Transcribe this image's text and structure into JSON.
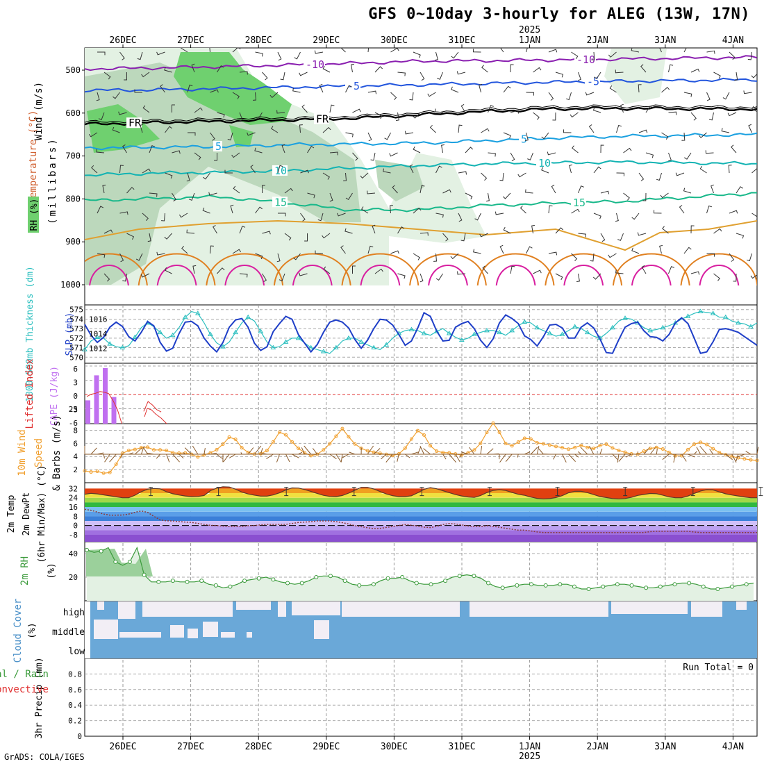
{
  "header": {
    "title": "GFS 0~10day 3-hourly for ALEG (13W, 17N)",
    "year_label": "2025",
    "credit": "GrADS: COLA/IGES"
  },
  "colors": {
    "rh_light": "#e3f1e3",
    "rh_mid": "#bcd8bc",
    "rh_dark": "#6fd06f",
    "temp_m10": "#8a1fb0",
    "temp_m5": "#2255dd",
    "temp_fr": "#000000",
    "temp_5": "#1aa0e0",
    "temp_10": "#13b3b3",
    "temp_15": "#18b88a",
    "temp_20": "#e0a030",
    "temp_25": "#e08020",
    "temp_30": "#d81fa0",
    "slp": "#1f3fc8",
    "thickness": "#2bbfbf",
    "cape": "#c070f0",
    "lifted": "#e03030",
    "wind10m": "#f0a030",
    "barb10m": "#8a5a2a",
    "rh2m": "#3a9a3a",
    "rh2m_fill": "#e3f1e3",
    "cloud": "#6aa8d8",
    "cloud_gap": "#f2eef5"
  },
  "chart_data": {
    "type": "meteogram",
    "time_axis": {
      "top_labels": [
        "26DEC",
        "27DEC",
        "28DEC",
        "29DEC",
        "30DEC",
        "31DEC",
        "1JAN",
        "2JAN",
        "3JAN",
        "4JAN"
      ],
      "bottom_labels": [
        "26DEC",
        "27DEC",
        "28DEC",
        "29DEC",
        "30DEC",
        "31DEC",
        "1JAN",
        "2JAN",
        "3JAN",
        "4JAN"
      ],
      "year_marker": "2025",
      "start_day_offset": -0.56,
      "end_day_offset": 9.3
    },
    "panels": [
      {
        "name": "upper-air",
        "ylabels": [
          "Wind (m/s)",
          "Temperature (°C)",
          "RH (%)",
          "(millibars)"
        ],
        "y_ticks": [
          "500",
          "600",
          "700",
          "800",
          "900",
          "1000"
        ],
        "ylim": [
          1000,
          450
        ],
        "contours": [
          {
            "label": "-10",
            "level_mb": [
              497,
              495,
              492,
              488,
              484,
              479,
              478,
              476,
              474,
              472,
              470
            ]
          },
          {
            "label": "-5",
            "level_mb": [
              547,
              546,
              543,
              540,
              537,
              534,
              531,
              528,
              526,
              524,
              522
            ]
          },
          {
            "label": "FR",
            "level_mb": [
              626,
              622,
              619,
              616,
              612,
              604,
              596,
              590,
              589,
              590,
              591
            ]
          },
          {
            "label": "5",
            "level_mb": [
              681,
              680,
              678,
              674,
              672,
              670,
              664,
              658,
              654,
              652,
              650
            ]
          },
          {
            "label": "10",
            "level_mb": [
              745,
              740,
              738,
              734,
              728,
              722,
              718,
              716,
              714,
              716,
              718
            ]
          },
          {
            "label": "15",
            "level_mb": [
              804,
              799,
              795,
              810,
              826,
              825,
              815,
              810,
              806,
              796,
              786
            ]
          }
        ]
      },
      {
        "name": "slp-thickness",
        "ylabels": [
          "1000-500mb Thickness (dm)",
          "SLP (mb)"
        ],
        "thickness_ticks": [
          "575",
          "574",
          "573",
          "572",
          "571",
          "570"
        ],
        "slp_ticks": [
          "1016",
          "1014",
          "1012"
        ],
        "thickness_ylim": [
          569.8,
          575.2
        ],
        "slp_ylim": [
          1010.5,
          1017.6
        ],
        "slp_mb": [
          1015.3,
          1013.8,
          1012.8,
          1013.5,
          1014.9,
          1015.6,
          1015.0,
          1013.6,
          1013.0,
          1014.2,
          1015.7,
          1015.1,
          1012.8,
          1011.6,
          1012.0,
          1014.0,
          1015.6,
          1015.7,
          1015.1,
          1013.4,
          1012.3,
          1011.5,
          1012.8,
          1014.9,
          1015.9,
          1016.1,
          1014.9,
          1012.7,
          1011.7,
          1012.2,
          1014.3,
          1015.4,
          1016.4,
          1016.0,
          1013.9,
          1012.7,
          1011.5,
          1012.5,
          1014.2,
          1015.6,
          1015.9,
          1015.6,
          1014.8,
          1013.2,
          1012.0,
          1013.1,
          1014.7,
          1016.0,
          1015.9,
          1015.2,
          1013.9,
          1012.4,
          1013.0,
          1014.8,
          1016.9,
          1016.4,
          1014.4,
          1013.0,
          1013.1,
          1014.9,
          1015.4,
          1015.7,
          1014.7,
          1013.1,
          1012.1,
          1013.3,
          1015.5,
          1016.6,
          1016.1,
          1015.4,
          1013.7,
          1013.2,
          1012.3,
          1013.6,
          1015.2,
          1015.3,
          1014.8,
          1013.4,
          1013.4,
          1014.9,
          1015.5,
          1014.8,
          1013.3,
          1011.4,
          1011.3,
          1013.2,
          1014.9,
          1015.4,
          1015.6,
          1014.4,
          1013.6,
          1013.5,
          1013.0,
          1013.9,
          1015.5,
          1016.2,
          1015.4,
          1013.4,
          1011.3,
          1011.5,
          1012.9,
          1014.6,
          1014.7,
          1014.5,
          1014.2,
          1013.6,
          1013.0,
          1012.4
        ],
        "thickness_dm": [
          570.8,
          571.7,
          572.1,
          572.0,
          571.4,
          571.1,
          571.0,
          571.2,
          572.1,
          573.1,
          573.6,
          573.2,
          572.6,
          572.0,
          572.3,
          573.1,
          574.2,
          574.8,
          574.6,
          573.6,
          572.4,
          571.5,
          571.1,
          571.6,
          572.6,
          573.6,
          574.2,
          573.8,
          572.7,
          571.6,
          571.0,
          571.1,
          571.6,
          572.0,
          572.0,
          571.5,
          571.0,
          570.8,
          570.6,
          570.4,
          571.0,
          571.7,
          572.0,
          572.0,
          571.6,
          571.3,
          571.0,
          570.8,
          571.3,
          572.0,
          572.5,
          572.8,
          572.9,
          572.8,
          572.5,
          572.3,
          572.7,
          573.0,
          572.5,
          572.1,
          571.8,
          572.0,
          572.4,
          572.6,
          572.8,
          572.8,
          572.6,
          572.3,
          572.8,
          573.3,
          573.7,
          573.6,
          573.1,
          572.8,
          572.5,
          572.2,
          572.4,
          572.8,
          573.2,
          573.0,
          572.6,
          572.2,
          572.0,
          572.5,
          573.1,
          573.8,
          574.1,
          574.0,
          573.6,
          573.1,
          572.8,
          572.9,
          573.1,
          573.3,
          573.6,
          574.0,
          574.3,
          574.6,
          574.8,
          574.7,
          574.6,
          574.2,
          574.2,
          573.8,
          573.6,
          573.5,
          573.2,
          573.6
        ]
      },
      {
        "name": "cape-lifted",
        "ylabels": [
          "Lifted Index",
          "CAPE (J/kg)"
        ],
        "lifted_ticks": [
          "6",
          "3",
          "0",
          "-3",
          "-6"
        ],
        "cape_ticks": [
          "25"
        ],
        "cape_pct": [
          42,
          87,
          100,
          48
        ],
        "lifted_index": [
          0.7,
          -0.1,
          -0.4,
          -1.0,
          -0.8,
          -0.3,
          2.1,
          5.2,
          10.0,
          null,
          null,
          null,
          null,
          5.8,
          2.4,
          3.6,
          5.2,
          6.0
        ]
      },
      {
        "name": "wind10m",
        "ylabels": [
          "10m Wind Speed & Barbs (m/s)"
        ],
        "y_ticks": [
          "8",
          "6",
          "4",
          "2"
        ],
        "ylim": [
          0,
          9
        ],
        "speed_ms": [
          1.8,
          1.6,
          1.8,
          1.1,
          2.5,
          4.5,
          5.0,
          5.1,
          5.6,
          5.0,
          5.0,
          4.9,
          4.4,
          4.6,
          4.4,
          3.9,
          4.3,
          4.7,
          5.4,
          7.0,
          6.6,
          5.0,
          4.4,
          4.3,
          4.7,
          6.3,
          8.1,
          6.8,
          5.5,
          4.6,
          4.1,
          4.4,
          5.4,
          6.6,
          8.4,
          6.9,
          5.6,
          5.0,
          4.7,
          4.5,
          4.3,
          4.1,
          4.6,
          6.2,
          8.0,
          7.2,
          5.1,
          4.6,
          4.6,
          4.4,
          4.2,
          4.7,
          5.2,
          7.2,
          9.2,
          7.5,
          5.4,
          5.8,
          6.8,
          6.7,
          6.0,
          5.9,
          5.6,
          5.4,
          5.1,
          5.4,
          5.8,
          5.0,
          5.6,
          5.9,
          5.2,
          4.8,
          4.5,
          4.2,
          4.8,
          5.3,
          5.4,
          4.9,
          4.1,
          4.1,
          5.2,
          6.2,
          6.1,
          5.3,
          4.6,
          4.2,
          3.9,
          3.7,
          3.5,
          3.4
        ]
      },
      {
        "name": "temp2m",
        "ylabels": [
          "2m Temp",
          "2m DewPt",
          "(6hr Min/Max) (°C)"
        ],
        "y_ticks": [
          "32",
          "24",
          "16",
          "8",
          "0",
          "-8"
        ],
        "ylim": [
          -14,
          37
        ],
        "temp_c": [
          27,
          28,
          27,
          26,
          25,
          24,
          24,
          27,
          31,
          32,
          32,
          29,
          27,
          26,
          25,
          25,
          26,
          31,
          33,
          34,
          32,
          29,
          27,
          26,
          25,
          26,
          28,
          31,
          33,
          32,
          30,
          28,
          26,
          25,
          25,
          27,
          30,
          33,
          33,
          31,
          28,
          26,
          25,
          25,
          26,
          30,
          33,
          32,
          30,
          28,
          26,
          25,
          24,
          26,
          29,
          31,
          31,
          29,
          27,
          26,
          24,
          23,
          23,
          24,
          26,
          29,
          30,
          29,
          27,
          25,
          24,
          23,
          23,
          24,
          26,
          27,
          28,
          27,
          25,
          24,
          24,
          26,
          29,
          31,
          31,
          29,
          27,
          26,
          25,
          24,
          24
        ],
        "dewpt_c": [
          14,
          13,
          11,
          9,
          9,
          9,
          10,
          12,
          13,
          9,
          5,
          4,
          4,
          3,
          3,
          2,
          1,
          0,
          0,
          -1,
          -1,
          -1,
          0,
          0,
          1,
          1,
          1,
          1,
          2,
          3,
          3,
          4,
          4,
          4,
          3,
          2,
          0,
          -1,
          -2,
          -3,
          -2,
          -1,
          0,
          1,
          0,
          -1,
          -2,
          -1,
          1,
          2,
          1,
          0,
          -1,
          -1,
          0,
          -1,
          -2,
          -3,
          -4,
          -4,
          -5,
          -6,
          -6,
          -6,
          -6,
          -6,
          -6,
          -6,
          -6,
          -6,
          -6,
          -6,
          -6,
          -6,
          -6,
          -6,
          -5,
          -5,
          -5,
          -5,
          -5,
          -5,
          -6,
          -6,
          -6,
          -6,
          -6,
          -6,
          -6,
          -6,
          -6
        ]
      },
      {
        "name": "rh2m",
        "ylabels": [
          "2m RH (%)"
        ],
        "y_ticks": [
          "40",
          "20"
        ],
        "ylim": [
          0,
          50
        ],
        "rh_pct": [
          43,
          41,
          42,
          45,
          33,
          30,
          33,
          45,
          22,
          16,
          16,
          16,
          17,
          16,
          16,
          16,
          17,
          14,
          13,
          11,
          12,
          14,
          17,
          18,
          19,
          20,
          18,
          16,
          15,
          14,
          15,
          17,
          20,
          21,
          21,
          20,
          17,
          14,
          13,
          13,
          14,
          17,
          19,
          19,
          20,
          17,
          15,
          14,
          14,
          15,
          17,
          20,
          21,
          22,
          21,
          19,
          15,
          12,
          11,
          12,
          13,
          14,
          14,
          13,
          13,
          13,
          14,
          14,
          12,
          10,
          10,
          11,
          12,
          13,
          14,
          14,
          13,
          12,
          11,
          11,
          12,
          13,
          14,
          15,
          15,
          14,
          12,
          10,
          10,
          11,
          12,
          13,
          14,
          15
        ]
      },
      {
        "name": "cloud-cover",
        "ylabels": [
          "Cloud Cover (%)"
        ],
        "levels": [
          "high",
          "middle",
          "low"
        ]
      },
      {
        "name": "precip",
        "ylabels": [
          "3hr Precip (mm)",
          "Total / Rain",
          "Convective"
        ],
        "y_ticks": [
          "0.8",
          "0.6",
          "0.4",
          "0.2",
          "0"
        ],
        "ylim": [
          0,
          1
        ],
        "run_total": "Run Total = 0",
        "values_mm": []
      }
    ]
  }
}
